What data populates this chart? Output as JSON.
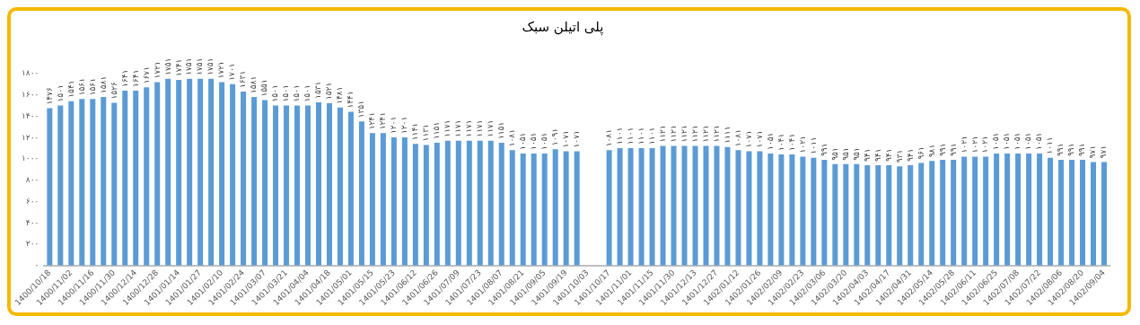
{
  "chart_data": {
    "type": "bar",
    "title": "پلی اتیلن سبک",
    "categories": [
      "1400/10/18",
      null,
      "1400/11/02",
      null,
      "1400/11/16",
      null,
      "1400/11/30",
      null,
      "1400/12/14",
      null,
      "1400/12/28",
      null,
      "1401/01/14",
      null,
      "1401/01/27",
      null,
      "1401/02/10",
      null,
      "1401/02/24",
      null,
      "1401/03/07",
      null,
      "1401/03/21",
      null,
      "1401/04/04",
      null,
      "1401/04/18",
      null,
      "1401/05/01",
      null,
      "1401/05/15",
      null,
      "1401/05/23",
      null,
      "1401/06/12",
      null,
      "1401/06/26",
      null,
      "1401/07/09",
      null,
      "1401/07/23",
      null,
      "1401/08/07",
      null,
      "1401/08/21",
      null,
      "1401/09/05",
      null,
      "1401/09/19",
      null,
      "1401/10/03",
      null,
      "1401/10/17",
      null,
      "1401/11/01",
      null,
      "1401/11/15",
      null,
      "1401/11/30",
      null,
      "1401/12/13",
      null,
      "1401/12/27",
      null,
      "1402/01/12",
      null,
      "1402/01/26",
      null,
      "1402/02/09",
      null,
      "1402/02/23",
      null,
      "1402/03/06",
      null,
      "1402/03/20",
      null,
      "1402/04/03",
      null,
      "1402/04/17",
      null,
      "1402/04/31",
      null,
      "1402/05/14",
      null,
      "1402/05/28",
      null,
      "1402/06/11",
      null,
      "1402/06/25",
      null,
      "1402/07/08",
      null,
      "1402/07/22",
      null,
      "1402/08/06",
      null,
      "1402/08/20",
      null,
      "1402/09/04"
    ],
    "values": [
      1476,
      1501,
      1541,
      1561,
      1561,
      1581,
      1526,
      1641,
      1641,
      1671,
      1721,
      1751,
      1741,
      1751,
      1751,
      1751,
      1721,
      1701,
      1631,
      1581,
      1551,
      1501,
      1501,
      1501,
      1501,
      1531,
      1521,
      1481,
      1441,
      1351,
      1241,
      1241,
      1201,
      1201,
      1141,
      1131,
      1151,
      1171,
      1171,
      1171,
      1171,
      1171,
      1151,
      1081,
      1051,
      1051,
      1051,
      1091,
      1071,
      1071,
      null,
      null,
      1081,
      1101,
      1101,
      1101,
      1101,
      1121,
      1121,
      1121,
      1121,
      1121,
      1121,
      1111,
      1081,
      1071,
      1071,
      1051,
      1041,
      1041,
      1021,
      1011,
      991,
      951,
      951,
      951,
      941,
      941,
      941,
      931,
      941,
      961,
      981,
      991,
      991,
      1021,
      1021,
      1021,
      1051,
      1051,
      1051,
      1051,
      1051,
      1011,
      991,
      991,
      991,
      971,
      971
    ],
    "value_labels": [
      "۱۴۷۶",
      "۱۵۰۱",
      "۱۵۴۱",
      "۱۵۶۱",
      "۱۵۶۱",
      "۱۵۸۱",
      "۱۵۲۶",
      "۱۶۴۱",
      "۱۶۴۱",
      "۱۶۷۱",
      "۱۷۲۱",
      "۱۷۵۱",
      "۱۷۴۱",
      "۱۷۵۱",
      "۱۷۵۱",
      "۱۷۵۱",
      "۱۷۲۱",
      "۱۷۰۱",
      "۱۶۳۱",
      "۱۵۸۱",
      "۱۵۵۱",
      "۱۵۰۱",
      "۱۵۰۱",
      "۱۵۰۱",
      "۱۵۰۱",
      "۱۵۳۱",
      "۱۵۲۱",
      "۱۴۸۱",
      "۱۴۴۱",
      "۱۳۵۱",
      "۱۲۴۱",
      "۱۲۴۱",
      "۱۲۰۱",
      "۱۲۰۱",
      "۱۱۴۱",
      "۱۱۳۱",
      "۱۱۵۱",
      "۱۱۷۱",
      "۱۱۷۱",
      "۱۱۷۱",
      "۱۱۷۱",
      "۱۱۷۱",
      "۱۱۵۱",
      "۱۰۸۱",
      "۱۰۵۱",
      "۱۰۵۱",
      "۱۰۵۱",
      "۱۰۹۱",
      "۱۰۷۱",
      "۱۰۷۱",
      null,
      null,
      "۱۰۸۱",
      "۱۱۰۱",
      "۱۱۰۱",
      "۱۱۰۱",
      "۱۱۰۱",
      "۱۱۲۱",
      "۱۱۲۱",
      "۱۱۲۱",
      "۱۱۲۱",
      "۱۱۲۱",
      "۱۱۲۱",
      "۱۱۱۱",
      "۱۰۸۱",
      "۱۰۷۱",
      "۱۰۷۱",
      "۱۰۵۱",
      "۱۰۴۱",
      "۱۰۴۱",
      "۱۰۲۱",
      "۱۰۱۱",
      "۹۹۱",
      "۹۵۱",
      "۹۵۱",
      "۹۵۱",
      "۹۴۱",
      "۹۴۱",
      "۹۴۱",
      "۹۳۱",
      "۹۴۱",
      "۹۶۱",
      "۹۸۱",
      "۹۹۱",
      "۹۹۱",
      "۱۰۲۱",
      "۱۰۲۱",
      "۱۰۲۱",
      "۱۰۵۱",
      "۱۰۵۱",
      "۱۰۵۱",
      "۱۰۵۱",
      "۱۰۵۱",
      "۱۰۱۱",
      "۹۹۱",
      "۹۹۱",
      "۹۹۱",
      "۹۷۱",
      "۹۷۱"
    ],
    "color": "#5b9bd5",
    "ylim": [
      0,
      1800
    ],
    "yticks": [
      {
        "value": 0,
        "label": "۰"
      },
      {
        "value": 200,
        "label": "۲۰۰"
      },
      {
        "value": 400,
        "label": "۴۰۰"
      },
      {
        "value": 600,
        "label": "۶۰۰"
      },
      {
        "value": 800,
        "label": "۸۰۰"
      },
      {
        "value": 1000,
        "label": "۱۰۰۰"
      },
      {
        "value": 1200,
        "label": "۱۲۰۰"
      },
      {
        "value": 1400,
        "label": "۱۴۰۰"
      },
      {
        "value": 1600,
        "label": "۱۶۰۰"
      },
      {
        "value": 1800,
        "label": "۱۸۰۰"
      }
    ],
    "grid": false,
    "legend": false
  }
}
